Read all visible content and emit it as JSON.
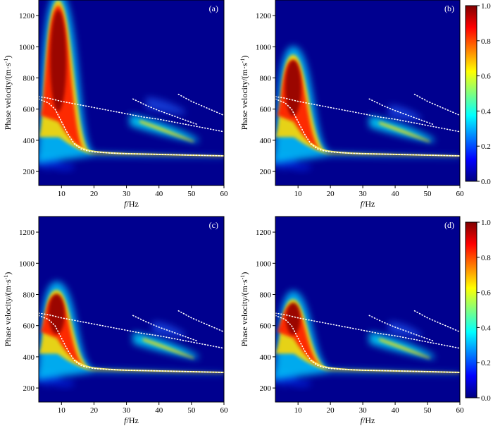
{
  "figure": {
    "xlabel_italic": "f",
    "xlabel_rest": "/Hz",
    "ylabel_main": "Phase velocity/(m·s",
    "ylabel_sup": "-1",
    "ylabel_close": ")"
  },
  "colorbar": {
    "colors": [
      "#00007f",
      "#0000ff",
      "#007fff",
      "#00ffff",
      "#7fff7f",
      "#ffff00",
      "#ff7f00",
      "#ff0000",
      "#7f0000"
    ],
    "tick_labels": [
      "0.0",
      "0.2",
      "0.4",
      "0.6",
      "0.8",
      "1.0"
    ],
    "ticks": [
      0.0,
      0.2,
      0.4,
      0.6,
      0.8,
      1.0
    ]
  },
  "chart_data": [
    {
      "type": "heatmap",
      "panel": "(a)",
      "xlabel": "f/Hz",
      "ylabel": "Phase velocity/(m·s-1)",
      "xlim": [
        3,
        60
      ],
      "ylim": [
        110,
        1300
      ],
      "xticks": [
        10,
        20,
        30,
        40,
        50,
        60
      ],
      "yticks": [
        200,
        400,
        600,
        800,
        1000,
        1200
      ],
      "xtick_labels": [
        "10",
        "20",
        "30",
        "40",
        "50",
        "60"
      ],
      "ytick_labels": [
        "200",
        "400",
        "600",
        "800",
        "1000",
        "1200"
      ],
      "fundamental_peak": {
        "f": 9,
        "v": 1300,
        "width_hz": 4.5,
        "note": "energy saturates to top of axis at low frequency"
      },
      "higher_mode_energy": [
        {
          "f_start": 31,
          "v_start": 540,
          "f_end": 52,
          "v_end": 400,
          "intensity": 0.75
        },
        {
          "f_start": 36,
          "v_start": 650,
          "f_end": 48,
          "v_end": 580,
          "intensity": 0.35
        }
      ],
      "reference_curves": [
        {
          "name": "fundamental",
          "f": [
            3,
            6,
            8,
            10,
            12,
            14,
            16,
            18,
            20,
            25,
            30,
            40,
            50,
            60
          ],
          "v": [
            665,
            640,
            600,
            520,
            440,
            375,
            345,
            332,
            325,
            318,
            314,
            310,
            305,
            300
          ]
        },
        {
          "name": "first higher",
          "f": [
            3,
            6,
            10,
            15,
            20,
            25,
            30,
            35,
            40,
            45,
            50,
            55,
            60
          ],
          "v": [
            680,
            670,
            650,
            630,
            610,
            590,
            570,
            550,
            535,
            515,
            495,
            475,
            455
          ]
        },
        {
          "name": "second higher",
          "f": [
            32,
            36,
            40,
            44,
            48,
            52
          ],
          "v": [
            665,
            625,
            590,
            560,
            530,
            500
          ]
        },
        {
          "name": "third higher",
          "f": [
            46,
            50,
            55,
            60
          ],
          "v": [
            695,
            650,
            605,
            560
          ]
        }
      ]
    },
    {
      "type": "heatmap",
      "panel": "(b)",
      "xlabel": "f/Hz",
      "ylabel": "Phase velocity/(m·s-1)",
      "xlim": [
        3,
        60
      ],
      "ylim": [
        110,
        1300
      ],
      "xticks": [
        10,
        20,
        30,
        40,
        50,
        60
      ],
      "yticks": [
        200,
        400,
        600,
        800,
        1000,
        1200
      ],
      "xtick_labels": [
        "10",
        "20",
        "30",
        "40",
        "50",
        "60"
      ],
      "ytick_labels": [
        "200",
        "400",
        "600",
        "800",
        "1000",
        "1200"
      ],
      "fundamental_peak": {
        "f": 8.5,
        "v": 950,
        "width_hz": 4.5
      },
      "higher_mode_energy": [
        {
          "f_start": 32,
          "v_start": 530,
          "f_end": 52,
          "v_end": 400,
          "intensity": 0.7
        },
        {
          "f_start": 38,
          "v_start": 600,
          "f_end": 48,
          "v_end": 540,
          "intensity": 0.3
        }
      ],
      "reference_curves": [
        {
          "name": "fundamental",
          "f": [
            3,
            6,
            8,
            10,
            12,
            14,
            16,
            18,
            20,
            25,
            30,
            40,
            50,
            60
          ],
          "v": [
            665,
            640,
            600,
            520,
            440,
            375,
            345,
            332,
            325,
            318,
            314,
            310,
            305,
            300
          ]
        },
        {
          "name": "first higher",
          "f": [
            3,
            6,
            10,
            15,
            20,
            25,
            30,
            35,
            40,
            45,
            50,
            55,
            60
          ],
          "v": [
            680,
            670,
            650,
            630,
            610,
            590,
            570,
            550,
            535,
            515,
            495,
            475,
            455
          ]
        },
        {
          "name": "second higher",
          "f": [
            32,
            36,
            40,
            44,
            48,
            52
          ],
          "v": [
            665,
            625,
            590,
            560,
            530,
            500
          ]
        },
        {
          "name": "third higher",
          "f": [
            46,
            50,
            55,
            60
          ],
          "v": [
            695,
            650,
            605,
            560
          ]
        }
      ]
    },
    {
      "type": "heatmap",
      "panel": "(c)",
      "xlabel": "f/Hz",
      "ylabel": "Phase velocity/(m·s-1)",
      "xlim": [
        3,
        60
      ],
      "ylim": [
        110,
        1300
      ],
      "xticks": [
        10,
        20,
        30,
        40,
        50,
        60
      ],
      "yticks": [
        200,
        400,
        600,
        800,
        1000,
        1200
      ],
      "xtick_labels": [
        "10",
        "20",
        "30",
        "40",
        "50",
        "60"
      ],
      "ytick_labels": [
        "200",
        "400",
        "600",
        "800",
        "1000",
        "1200"
      ],
      "fundamental_peak": {
        "f": 8.5,
        "v": 830,
        "width_hz": 4.5
      },
      "higher_mode_energy": [
        {
          "f_start": 32,
          "v_start": 530,
          "f_end": 52,
          "v_end": 400,
          "intensity": 0.7
        },
        {
          "f_start": 38,
          "v_start": 600,
          "f_end": 48,
          "v_end": 540,
          "intensity": 0.3
        }
      ],
      "reference_curves": [
        {
          "name": "fundamental",
          "f": [
            3,
            6,
            8,
            10,
            12,
            14,
            16,
            18,
            20,
            25,
            30,
            40,
            50,
            60
          ],
          "v": [
            665,
            640,
            600,
            520,
            440,
            375,
            345,
            332,
            325,
            318,
            314,
            310,
            305,
            300
          ]
        },
        {
          "name": "first higher",
          "f": [
            3,
            6,
            10,
            15,
            20,
            25,
            30,
            35,
            40,
            45,
            50,
            55,
            60
          ],
          "v": [
            680,
            670,
            650,
            630,
            610,
            590,
            570,
            550,
            535,
            515,
            495,
            475,
            455
          ]
        },
        {
          "name": "second higher",
          "f": [
            32,
            36,
            40,
            44,
            48,
            52
          ],
          "v": [
            665,
            625,
            590,
            560,
            530,
            500
          ]
        },
        {
          "name": "third higher",
          "f": [
            46,
            50,
            55,
            60
          ],
          "v": [
            695,
            650,
            605,
            560
          ]
        }
      ]
    },
    {
      "type": "heatmap",
      "panel": "(d)",
      "xlabel": "f/Hz",
      "ylabel": "Phase velocity/(m·s-1)",
      "xlim": [
        3,
        60
      ],
      "ylim": [
        110,
        1300
      ],
      "xticks": [
        10,
        20,
        30,
        40,
        50,
        60
      ],
      "yticks": [
        200,
        400,
        600,
        800,
        1000,
        1200
      ],
      "xtick_labels": [
        "10",
        "20",
        "30",
        "40",
        "50",
        "60"
      ],
      "ytick_labels": [
        "200",
        "400",
        "600",
        "800",
        "1000",
        "1200"
      ],
      "fundamental_peak": {
        "f": 8.5,
        "v": 770,
        "width_hz": 4.0
      },
      "higher_mode_energy": [
        {
          "f_start": 32,
          "v_start": 530,
          "f_end": 52,
          "v_end": 400,
          "intensity": 0.7
        },
        {
          "f_start": 38,
          "v_start": 600,
          "f_end": 48,
          "v_end": 540,
          "intensity": 0.3
        }
      ],
      "reference_curves": [
        {
          "name": "fundamental",
          "f": [
            3,
            6,
            8,
            10,
            12,
            14,
            16,
            18,
            20,
            25,
            30,
            40,
            50,
            60
          ],
          "v": [
            665,
            640,
            600,
            520,
            440,
            375,
            345,
            332,
            325,
            318,
            314,
            310,
            305,
            300
          ]
        },
        {
          "name": "first higher",
          "f": [
            3,
            6,
            10,
            15,
            20,
            25,
            30,
            35,
            40,
            45,
            50,
            55,
            60
          ],
          "v": [
            680,
            670,
            650,
            630,
            610,
            590,
            570,
            550,
            535,
            515,
            495,
            475,
            455
          ]
        },
        {
          "name": "second higher",
          "f": [
            32,
            36,
            40,
            44,
            48,
            52
          ],
          "v": [
            665,
            625,
            590,
            560,
            530,
            500
          ]
        },
        {
          "name": "third higher",
          "f": [
            46,
            50,
            55,
            60
          ],
          "v": [
            695,
            650,
            605,
            560
          ]
        }
      ]
    }
  ]
}
